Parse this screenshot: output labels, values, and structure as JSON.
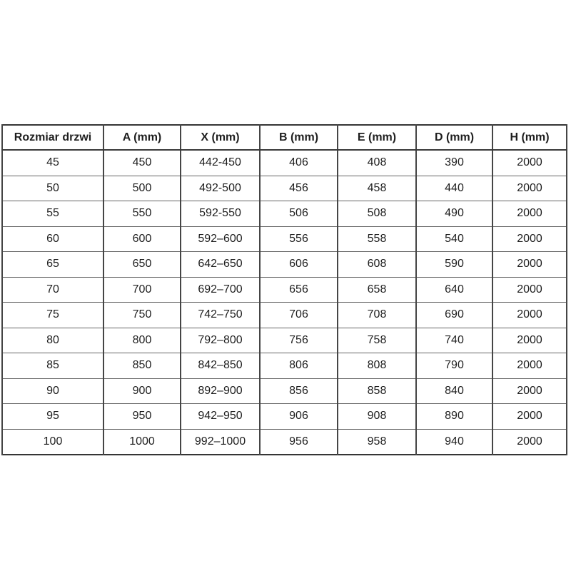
{
  "table": {
    "headers": [
      "Rozmiar drzwi",
      "A (mm)",
      "X (mm)",
      "B (mm)",
      "E (mm)",
      "D (mm)",
      "H (mm)"
    ],
    "rows": [
      [
        "45",
        "450",
        "442-450",
        "406",
        "408",
        "390",
        "2000"
      ],
      [
        "50",
        "500",
        "492-500",
        "456",
        "458",
        "440",
        "2000"
      ],
      [
        "55",
        "550",
        "592-550",
        "506",
        "508",
        "490",
        "2000"
      ],
      [
        "60",
        "600",
        "592–600",
        "556",
        "558",
        "540",
        "2000"
      ],
      [
        "65",
        "650",
        "642–650",
        "606",
        "608",
        "590",
        "2000"
      ],
      [
        "70",
        "700",
        "692–700",
        "656",
        "658",
        "640",
        "2000"
      ],
      [
        "75",
        "750",
        "742–750",
        "706",
        "708",
        "690",
        "2000"
      ],
      [
        "80",
        "800",
        "792–800",
        "756",
        "758",
        "740",
        "2000"
      ],
      [
        "85",
        "850",
        "842–850",
        "806",
        "808",
        "790",
        "2000"
      ],
      [
        "90",
        "900",
        "892–900",
        "856",
        "858",
        "840",
        "2000"
      ],
      [
        "95",
        "950",
        "942–950",
        "906",
        "908",
        "890",
        "2000"
      ],
      [
        "100",
        "1000",
        "992–1000",
        "956",
        "958",
        "940",
        "2000"
      ]
    ]
  },
  "chart_data": {
    "type": "table",
    "title": "",
    "columns": [
      "Rozmiar drzwi",
      "A (mm)",
      "X (mm)",
      "B (mm)",
      "E (mm)",
      "D (mm)",
      "H (mm)"
    ],
    "rows": [
      [
        "45",
        "450",
        "442-450",
        "406",
        "408",
        "390",
        "2000"
      ],
      [
        "50",
        "500",
        "492-500",
        "456",
        "458",
        "440",
        "2000"
      ],
      [
        "55",
        "550",
        "592-550",
        "506",
        "508",
        "490",
        "2000"
      ],
      [
        "60",
        "600",
        "592–600",
        "556",
        "558",
        "540",
        "2000"
      ],
      [
        "65",
        "650",
        "642–650",
        "606",
        "608",
        "590",
        "2000"
      ],
      [
        "70",
        "700",
        "692–700",
        "656",
        "658",
        "640",
        "2000"
      ],
      [
        "75",
        "750",
        "742–750",
        "706",
        "708",
        "690",
        "2000"
      ],
      [
        "80",
        "800",
        "792–800",
        "756",
        "758",
        "740",
        "2000"
      ],
      [
        "85",
        "850",
        "842–850",
        "806",
        "808",
        "790",
        "2000"
      ],
      [
        "90",
        "900",
        "892–900",
        "856",
        "858",
        "840",
        "2000"
      ],
      [
        "95",
        "950",
        "942–950",
        "906",
        "908",
        "890",
        "2000"
      ],
      [
        "100",
        "1000",
        "992–1000",
        "956",
        "958",
        "940",
        "2000"
      ]
    ]
  },
  "colors": {
    "background": "#ffffff",
    "text": "#1e1e1e",
    "border_outer": "#353535",
    "border_vertical": "#454545",
    "border_horizontal": "#646464"
  }
}
